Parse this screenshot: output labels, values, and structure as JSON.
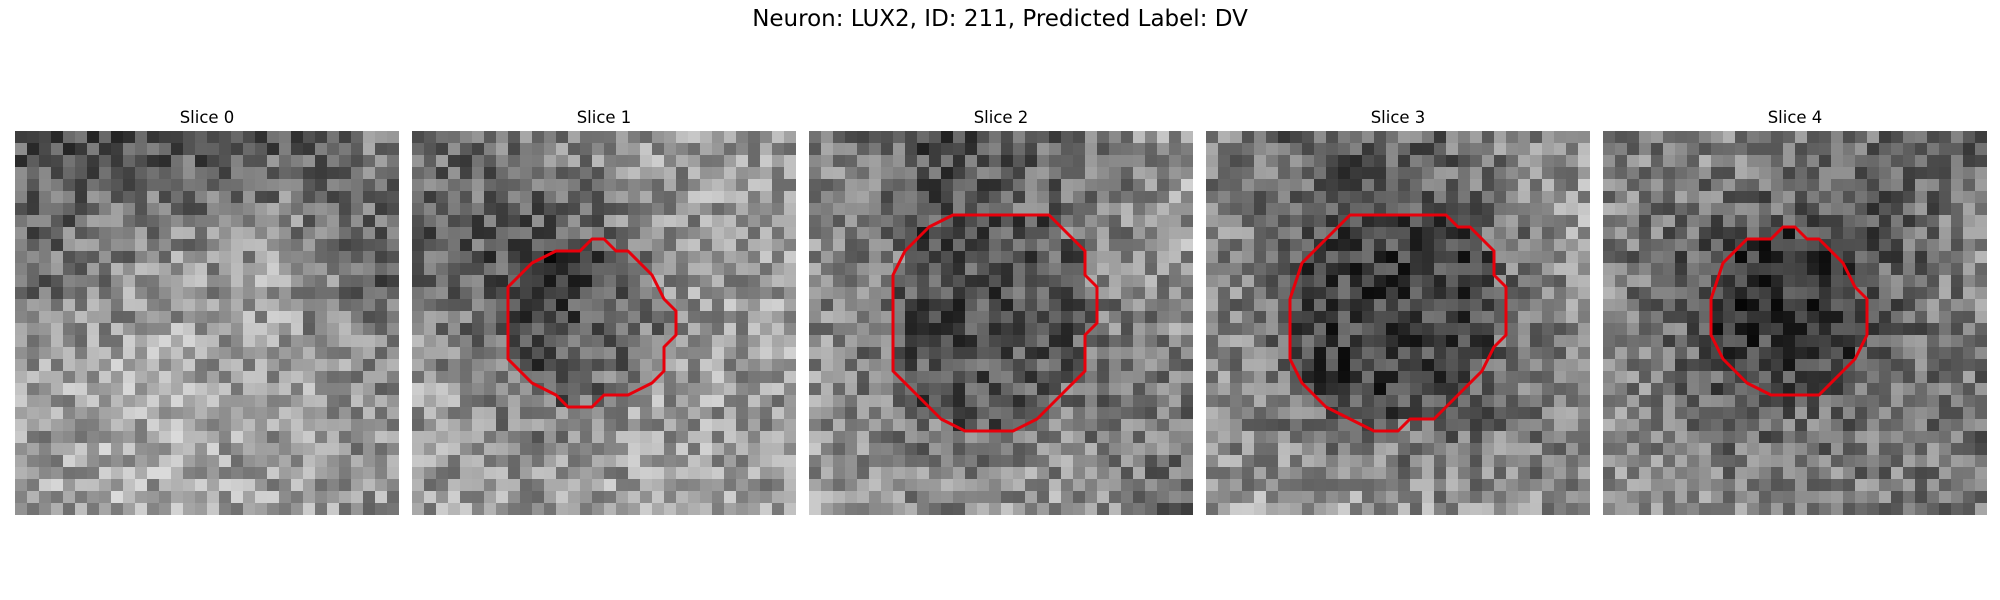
{
  "figure": {
    "title": "Neuron: LUX2, ID: 211, Predicted Label: DV"
  },
  "colors": {
    "contour": "#e8000b",
    "background": "#ffffff"
  },
  "panels": [
    {
      "title": "Slice 0",
      "has_contour": false,
      "seed": 11,
      "field": [
        [
          0.35,
          0.3,
          0.35,
          0.5
        ],
        [
          0.4,
          0.55,
          0.62,
          0.35
        ],
        [
          0.6,
          0.68,
          0.62,
          0.55
        ],
        [
          0.62,
          0.66,
          0.62,
          0.58
        ]
      ]
    },
    {
      "title": "Slice 1",
      "has_contour": true,
      "seed": 23,
      "field": [
        [
          0.4,
          0.5,
          0.62,
          0.6
        ],
        [
          0.4,
          0.3,
          0.55,
          0.65
        ],
        [
          0.62,
          0.45,
          0.62,
          0.6
        ],
        [
          0.6,
          0.62,
          0.65,
          0.6
        ]
      ]
    },
    {
      "title": "Slice 2",
      "has_contour": true,
      "seed": 37,
      "field": [
        [
          0.55,
          0.3,
          0.4,
          0.62
        ],
        [
          0.55,
          0.4,
          0.45,
          0.6
        ],
        [
          0.55,
          0.4,
          0.45,
          0.5
        ],
        [
          0.6,
          0.55,
          0.6,
          0.4
        ]
      ]
    },
    {
      "title": "Slice 3",
      "has_contour": true,
      "seed": 41,
      "field": [
        [
          0.5,
          0.35,
          0.45,
          0.6
        ],
        [
          0.55,
          0.35,
          0.35,
          0.6
        ],
        [
          0.55,
          0.35,
          0.35,
          0.5
        ],
        [
          0.62,
          0.6,
          0.58,
          0.55
        ]
      ]
    },
    {
      "title": "Slice 4",
      "has_contour": true,
      "seed": 53,
      "field": [
        [
          0.5,
          0.55,
          0.45,
          0.35
        ],
        [
          0.5,
          0.3,
          0.3,
          0.55
        ],
        [
          0.55,
          0.35,
          0.4,
          0.45
        ],
        [
          0.6,
          0.55,
          0.5,
          0.45
        ]
      ]
    }
  ]
}
